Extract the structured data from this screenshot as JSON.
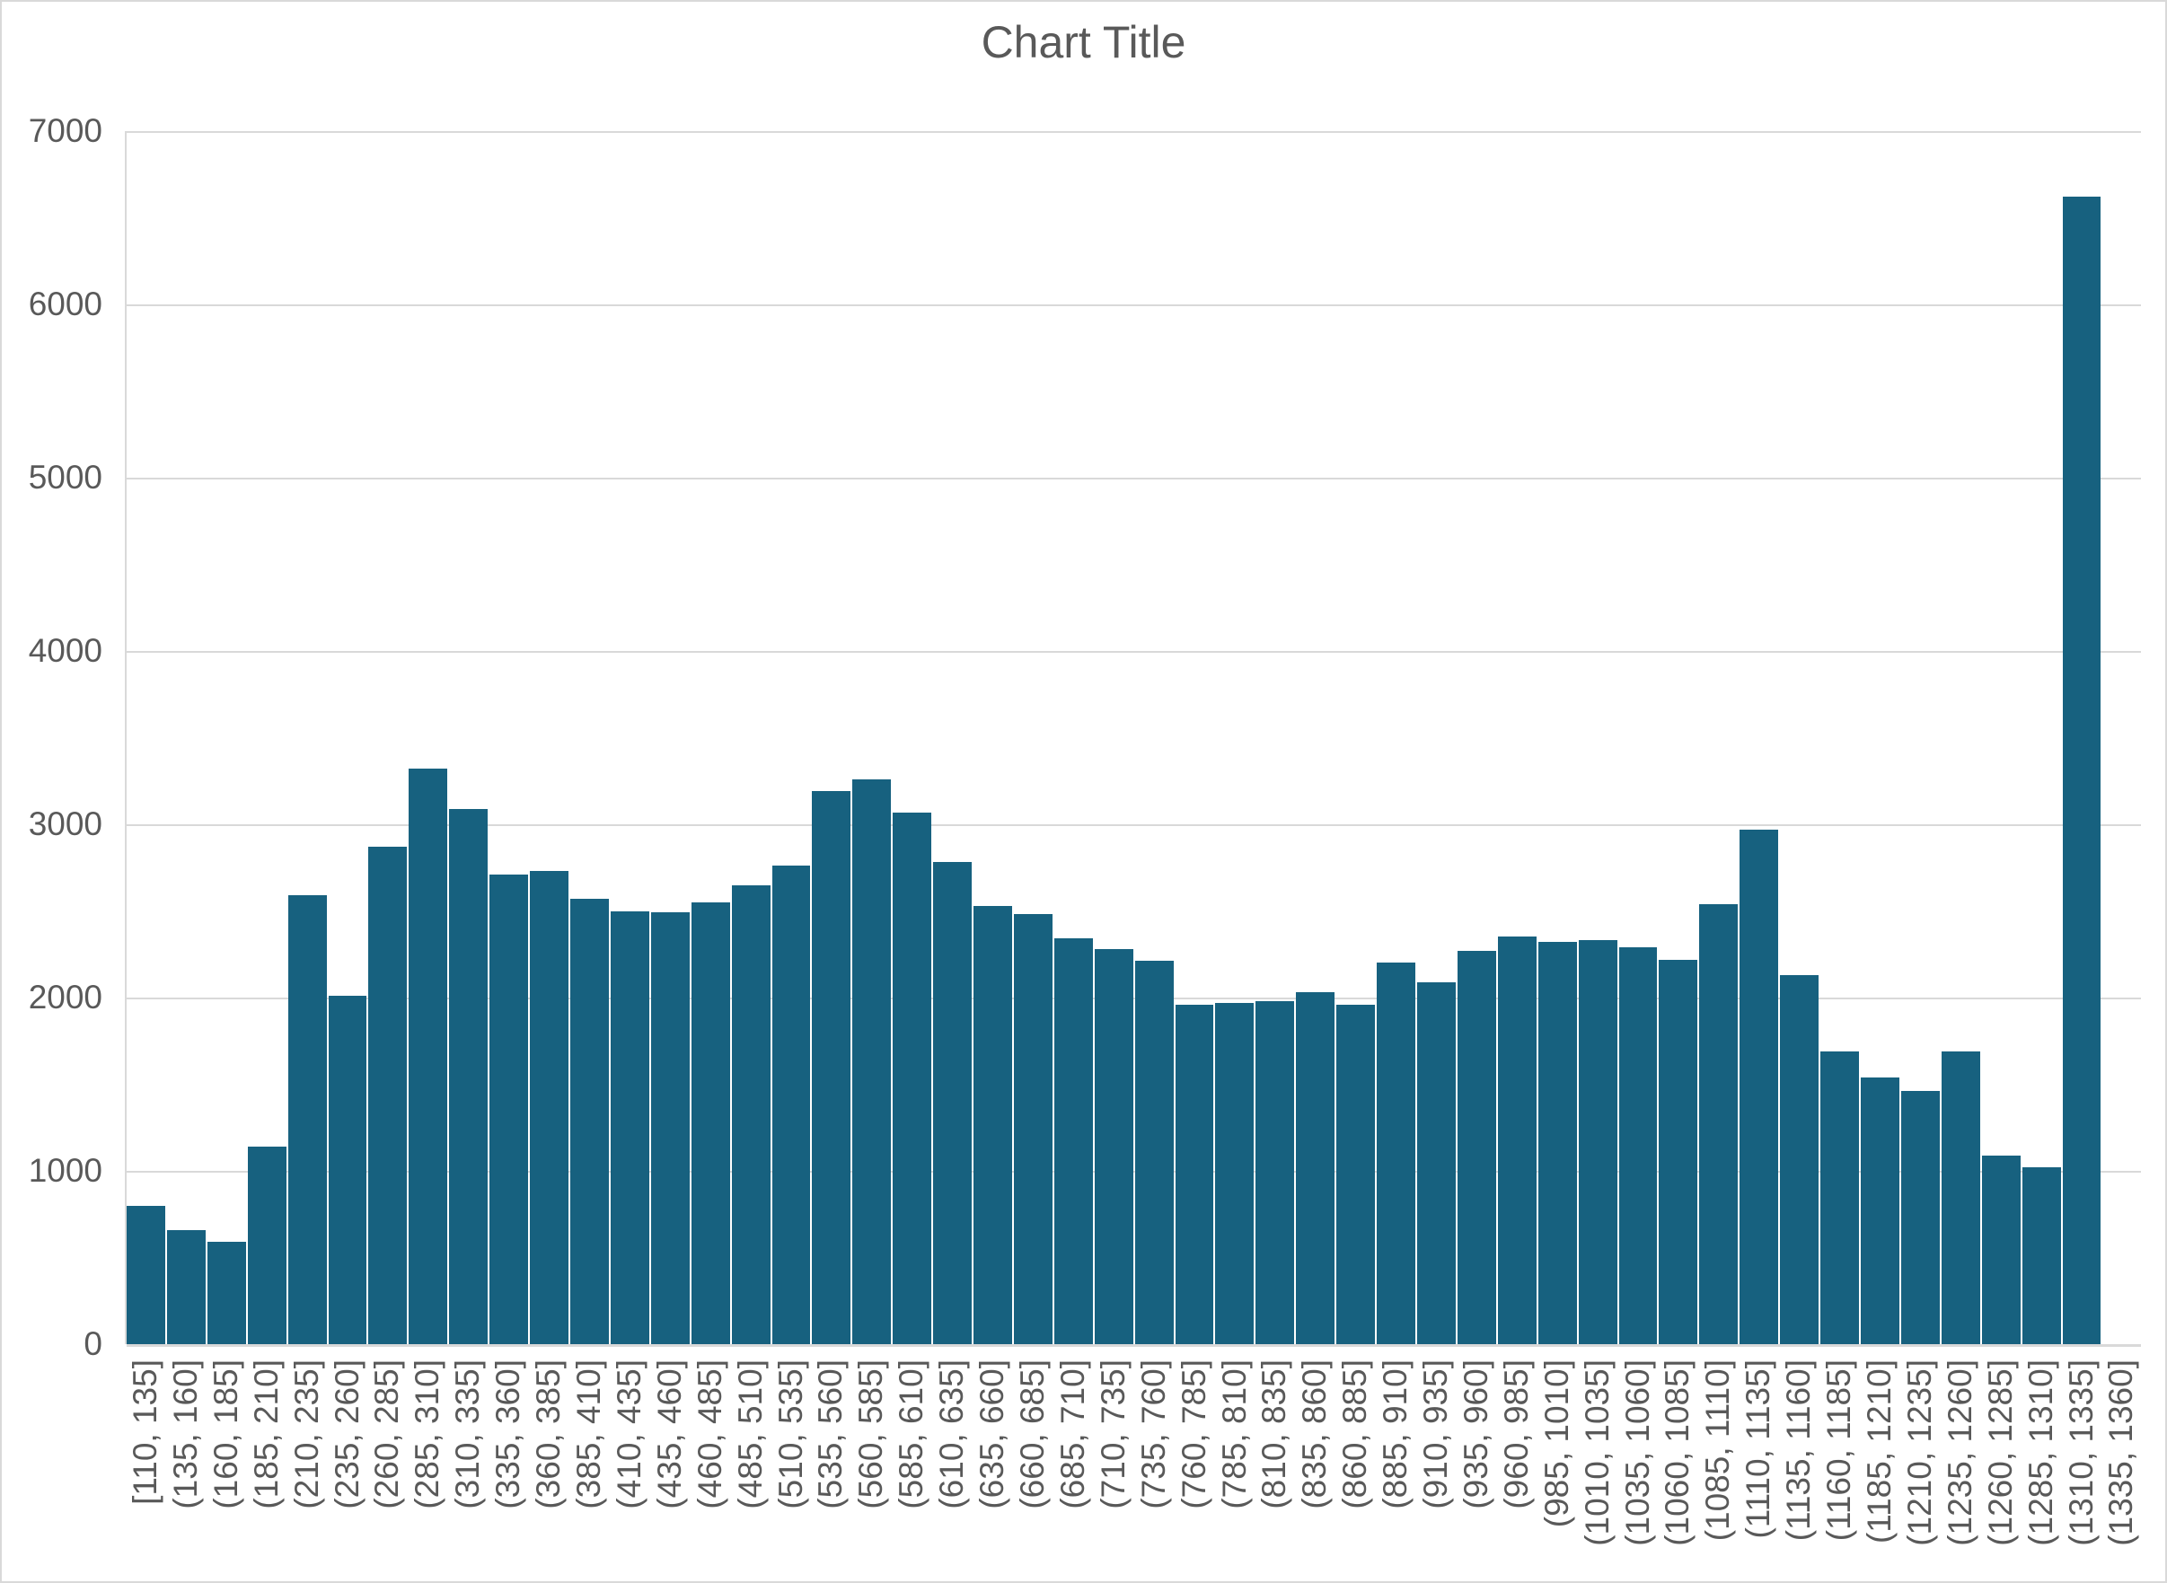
{
  "title": "Chart Title",
  "colors": {
    "bar": "#17617F",
    "gridline": "#D9D9D9",
    "axis_line": "#D9D9D9",
    "text": "#595959",
    "background": "#FFFFFF",
    "frame_border": "#D9D9D9"
  },
  "y_axis": {
    "min": 0,
    "max": 7000,
    "step": 1000,
    "tick_labels": [
      "0",
      "1000",
      "2000",
      "3000",
      "4000",
      "5000",
      "6000",
      "7000"
    ]
  },
  "chart_data": {
    "type": "bar",
    "title": "Chart Title",
    "xlabel": "",
    "ylabel": "",
    "ylim": [
      0,
      7000
    ],
    "grid": true,
    "legend_position": "none",
    "bin_width": 25,
    "categories": [
      "[110, 135]",
      "(135, 160]",
      "(160, 185]",
      "(185, 210]",
      "(210, 235]",
      "(235, 260]",
      "(260, 285]",
      "(285, 310]",
      "(310, 335]",
      "(335, 360]",
      "(360, 385]",
      "(385, 410]",
      "(410, 435]",
      "(435, 460]",
      "(460, 485]",
      "(485, 510]",
      "(510, 535]",
      "(535, 560]",
      "(560, 585]",
      "(585, 610]",
      "(610, 635]",
      "(635, 660]",
      "(660, 685]",
      "(685, 710]",
      "(710, 735]",
      "(735, 760]",
      "(760, 785]",
      "(785, 810]",
      "(810, 835]",
      "(835, 860]",
      "(860, 885]",
      "(885, 910]",
      "(910, 935]",
      "(935, 960]",
      "(960, 985]",
      "(985, 1010]",
      "(1010, 1035]",
      "(1035, 1060]",
      "(1060, 1085]",
      "(1085, 1110]",
      "(1110, 1135]",
      "(1135, 1160]",
      "(1160, 1185]",
      "(1185, 1210]",
      "(1210, 1235]",
      "(1235, 1260]",
      "(1260, 1285]",
      "(1285, 1310]",
      "(1310, 1335]",
      "(1335, 1360]"
    ],
    "values": [
      800,
      660,
      590,
      1140,
      2590,
      2010,
      2870,
      3320,
      3090,
      2710,
      2730,
      2570,
      2500,
      2490,
      2550,
      2650,
      2760,
      3190,
      3260,
      3070,
      2780,
      2530,
      2480,
      2340,
      2280,
      2210,
      1960,
      1970,
      1980,
      2030,
      1960,
      2200,
      2090,
      2270,
      2350,
      2320,
      2330,
      2290,
      2220,
      2540,
      2970,
      2130,
      1690,
      1540,
      1460,
      1690,
      1090,
      1020,
      6620,
      0
    ]
  }
}
